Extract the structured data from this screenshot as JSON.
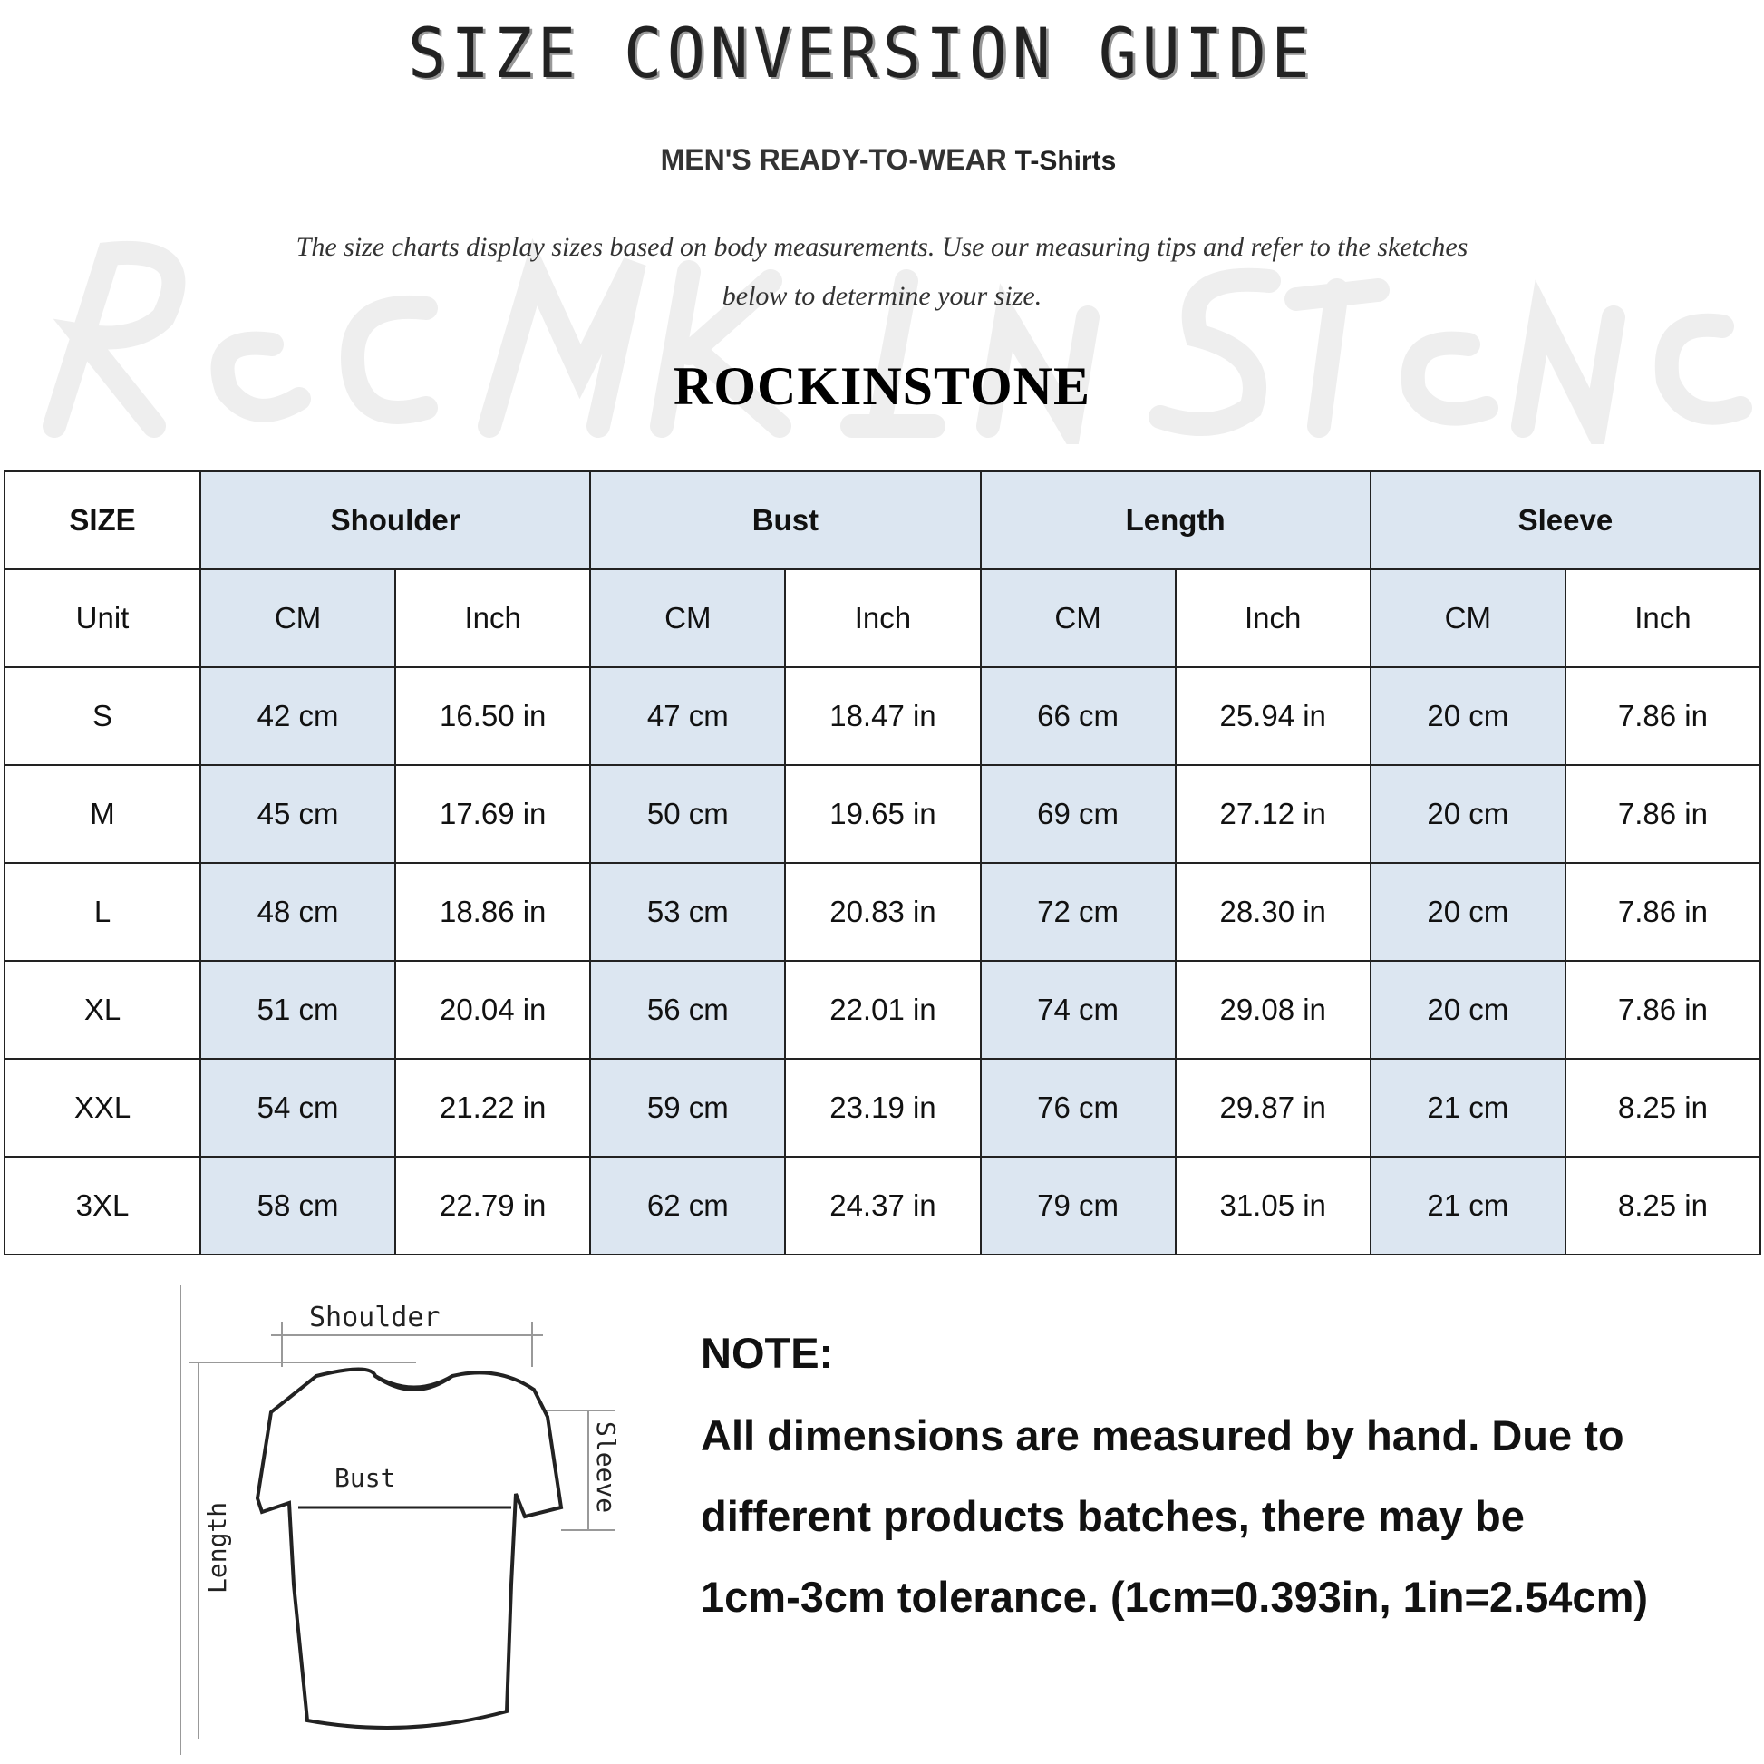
{
  "title": "SIZE CONVERSION GUIDE",
  "subtitle": {
    "main": "MEN'S READY-TO-WEAR",
    "product": "T-Shirts"
  },
  "intro": [
    "The size charts display sizes based on body measurements. Use our measuring tips and refer to the sketches",
    "below to determine your size."
  ],
  "brand": "ROCKINSTONE",
  "watermark": "Rock In Stone",
  "colors": {
    "header_blue": "#dce6f1",
    "border": "#222222"
  },
  "table": {
    "size_header": "SIZE",
    "groups": [
      "Shoulder",
      "Bust",
      "Length",
      "Sleeve"
    ],
    "unit_label": "Unit",
    "units": [
      "CM",
      "Inch",
      "CM",
      "Inch",
      "CM",
      "Inch",
      "CM",
      "Inch"
    ],
    "rows": [
      {
        "size": "S",
        "values": [
          "42 cm",
          "16.50 in",
          "47 cm",
          "18.47 in",
          "66 cm",
          "25.94 in",
          "20 cm",
          "7.86 in"
        ]
      },
      {
        "size": "M",
        "values": [
          "45 cm",
          "17.69 in",
          "50 cm",
          "19.65 in",
          "69 cm",
          "27.12 in",
          "20 cm",
          "7.86 in"
        ]
      },
      {
        "size": "L",
        "values": [
          "48 cm",
          "18.86 in",
          "53 cm",
          "20.83 in",
          "72 cm",
          "28.30 in",
          "20 cm",
          "7.86 in"
        ]
      },
      {
        "size": "XL",
        "values": [
          "51 cm",
          "20.04 in",
          "56 cm",
          "22.01 in",
          "74 cm",
          "29.08 in",
          "20 cm",
          "7.86 in"
        ]
      },
      {
        "size": "XXL",
        "values": [
          "54 cm",
          "21.22 in",
          "59 cm",
          "23.19 in",
          "76 cm",
          "29.87 in",
          "21 cm",
          "8.25 in"
        ]
      },
      {
        "size": "3XL",
        "values": [
          "58 cm",
          "22.79 in",
          "62 cm",
          "24.37 in",
          "79 cm",
          "31.05 in",
          "21 cm",
          "8.25 in"
        ]
      }
    ]
  },
  "diagram": {
    "shoulder": "Shoulder",
    "bust": "Bust",
    "length": "Length",
    "sleeve": "Sleeve"
  },
  "note": {
    "heading": "NOTE:",
    "lines": [
      "All dimensions are measured by hand. Due to",
      "different products batches, there may be",
      "1cm-3cm tolerance. (1cm=0.393in, 1in=2.54cm)"
    ]
  }
}
